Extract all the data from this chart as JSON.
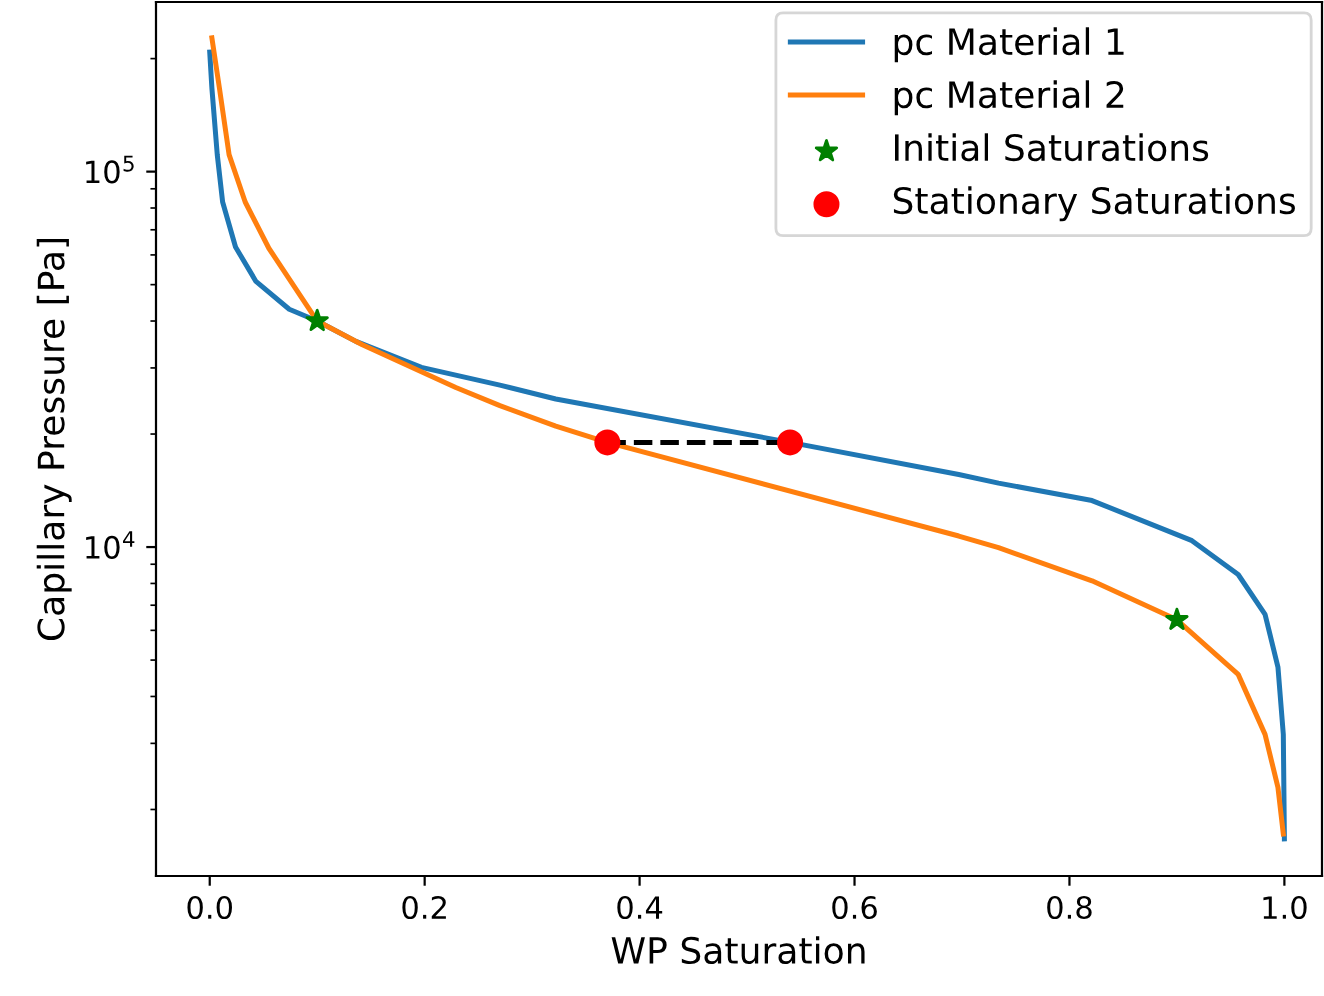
{
  "chart_data": {
    "type": "line",
    "xlabel": "WP Saturation",
    "ylabel": "Capillary Pressure [Pa]",
    "xlim": [
      -0.05,
      1.035
    ],
    "ylim": [
      1330,
      283000
    ],
    "log": "y",
    "xticks": [
      {
        "value": 0,
        "label": "0.0"
      },
      {
        "value": 0.2,
        "label": "0.2"
      },
      {
        "value": 0.4,
        "label": "0.4"
      },
      {
        "value": 0.6,
        "label": "0.6"
      },
      {
        "value": 0.8,
        "label": "0.8"
      },
      {
        "value": 1,
        "label": "1.0"
      }
    ],
    "yticks": [
      {
        "value": 10000,
        "label": "10$^{4}$"
      },
      {
        "value": 100000,
        "label": "10$^{5}$"
      }
    ],
    "grid": false,
    "legend": "top right",
    "series": [
      {
        "name": "pc Material 1",
        "color": "#1f77b4",
        "marker": "none",
        "line_style": "solid",
        "x": [
          0.0,
          0.002,
          0.007,
          0.012,
          0.024,
          0.043,
          0.074,
          0.1,
          0.136,
          0.197,
          0.27,
          0.322,
          0.54,
          0.697,
          0.734,
          0.821,
          0.914,
          0.957,
          0.982,
          0.994,
          0.999,
          1.0
        ],
        "values": [
          208000,
          167000,
          111000,
          83000,
          63000,
          51000,
          43000,
          40000,
          35300,
          30100,
          27000,
          24800,
          19000,
          15600,
          14800,
          13300,
          10400,
          8450,
          6620,
          4790,
          3170,
          1670
        ]
      },
      {
        "name": "pc Material 2",
        "color": "#ff7f0e",
        "marker": "none",
        "line_style": "solid",
        "x": [
          0.002,
          0.009,
          0.018,
          0.033,
          0.055,
          0.1,
          0.142,
          0.229,
          0.27,
          0.322,
          0.37,
          0.697,
          0.734,
          0.821,
          0.9,
          0.957,
          0.982,
          0.994,
          0.999
        ],
        "values": [
          227000,
          167000,
          111000,
          83000,
          62500,
          40000,
          34600,
          26600,
          23800,
          21000,
          19000,
          10700,
          9960,
          8130,
          6400,
          4580,
          3170,
          2290,
          1720
        ]
      },
      {
        "color": "#000000",
        "marker": "none",
        "line_style": "dashed",
        "x": [
          0.37,
          0.54
        ],
        "values": [
          19000,
          19000
        ]
      },
      {
        "name": "Initial Saturations",
        "color": "#008000",
        "type": "scatter",
        "marker": "star",
        "x": [
          0.1,
          0.9
        ],
        "values": [
          40000,
          6400
        ]
      },
      {
        "name": "Stationary Saturations",
        "color": "#ff0000",
        "type": "scatter",
        "marker": "circle",
        "x": [
          0.37,
          0.54
        ],
        "values": [
          19000,
          19000
        ]
      }
    ]
  }
}
